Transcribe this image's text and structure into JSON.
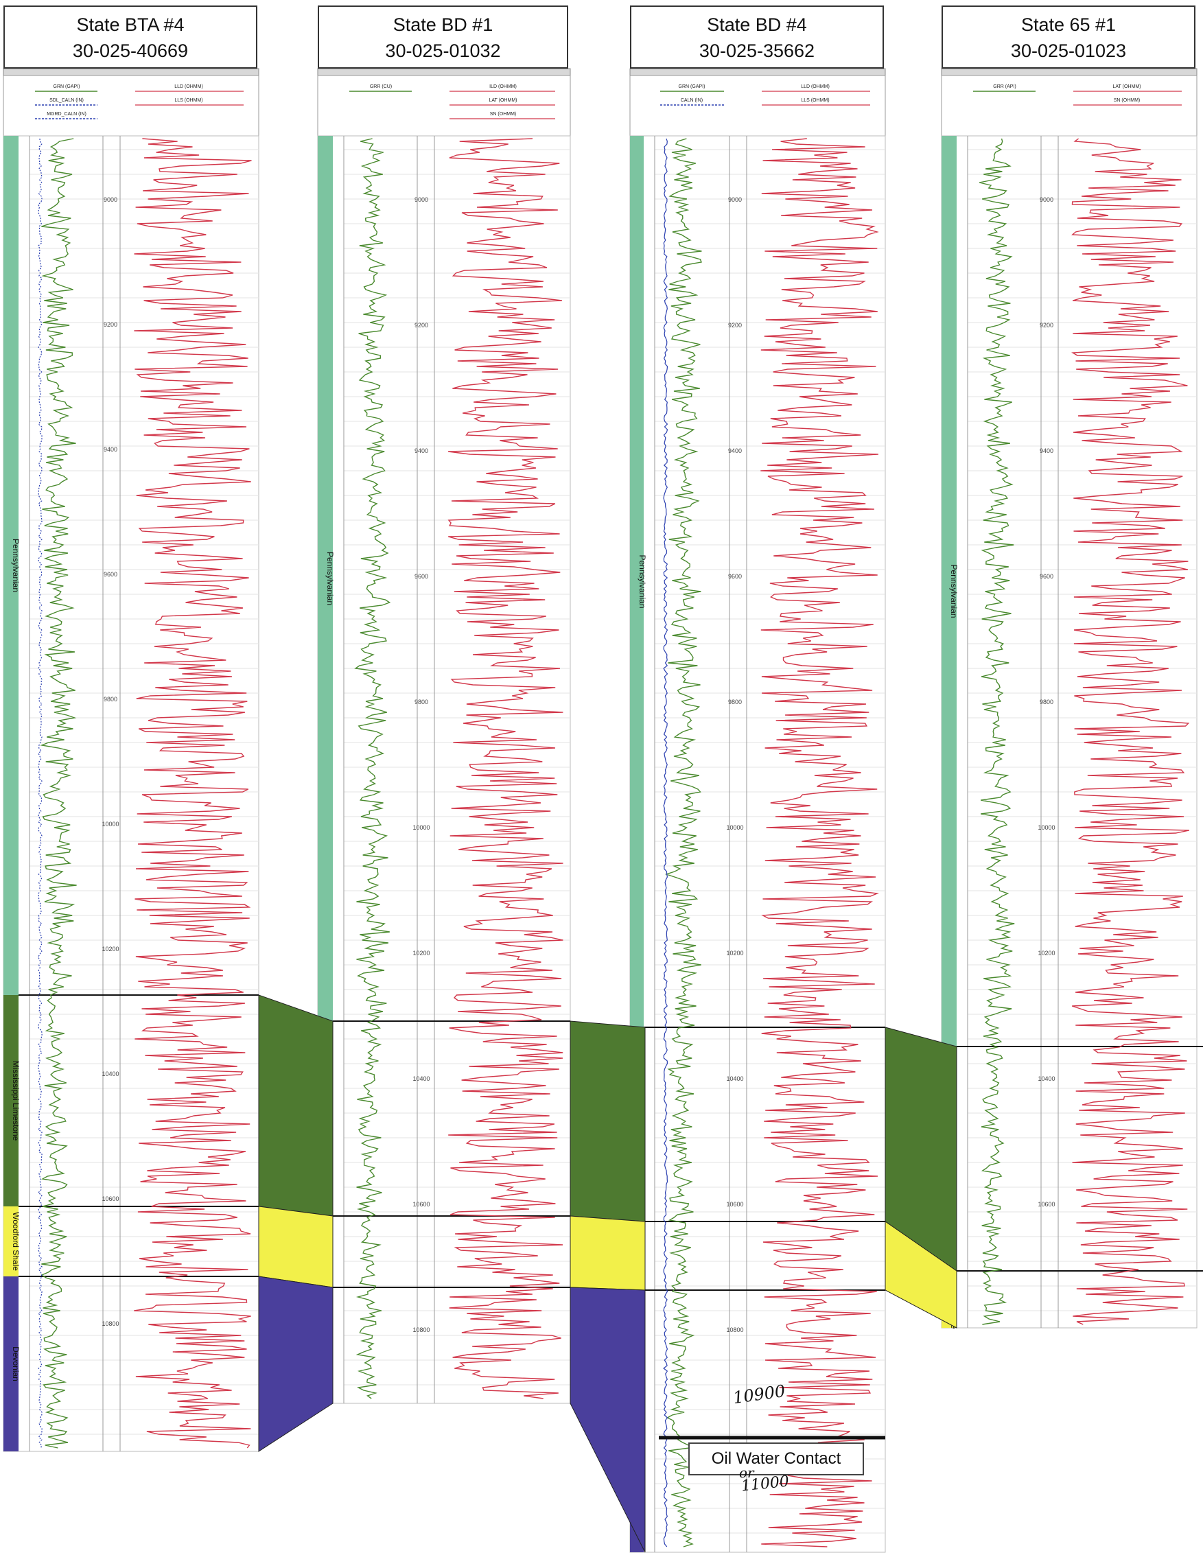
{
  "wells": [
    {
      "name": "State BTA #4",
      "api": "30-025-40669",
      "tracks": {
        "t1": [
          "GRN (GAPI)",
          "SDL_CALN (IN)",
          "MGRD_CALN (IN)"
        ],
        "t3": [
          "LLD (OHMM)",
          "LLS (OHMM)"
        ]
      },
      "depth_ticks": [
        "9000",
        "9200",
        "9400",
        "9600",
        "9800",
        "10000",
        "10200",
        "10400",
        "10600",
        "10800"
      ],
      "tops": [
        {
          "name": "Pennsylvanian",
          "from": 8850,
          "to": 10440
        },
        {
          "name": "Mississippi Limestone",
          "from": 10440,
          "to": 10640
        },
        {
          "name": "Woodford Shale",
          "from": 10640,
          "to": 10700
        },
        {
          "name": "Devonian",
          "from": 10700,
          "to": 10860
        }
      ]
    },
    {
      "name": "State BD #1",
      "api": "30-025-01032",
      "tracks": {
        "t1": [
          "GRR (CU)"
        ],
        "t3": [
          "ILD (OHMM)",
          "LAT (OHMM)",
          "SN (OHMM)"
        ]
      },
      "depth_ticks": [
        "9000",
        "9200",
        "9400",
        "9600",
        "9800",
        "10000",
        "10200",
        "10400",
        "10600",
        "10800"
      ],
      "tops": [
        {
          "name": "Pennsylvanian",
          "from": 8850,
          "to": 10440
        },
        {
          "name": "Mississippi Limestone",
          "from": 10440,
          "to": 10640
        },
        {
          "name": "Woodford Shale",
          "from": 10640,
          "to": 10700
        },
        {
          "name": "Devonian",
          "from": 10700,
          "to": 10860
        }
      ]
    },
    {
      "name": "State BD #4",
      "api": "30-025-35662",
      "tracks": {
        "t1": [
          "GRN (GAPI)",
          "CALN (IN)"
        ],
        "t3": [
          "LLD (OHMM)",
          "LLS (OHMM)"
        ]
      },
      "depth_ticks": [
        "9000",
        "9200",
        "9400",
        "9600",
        "9800",
        "10000",
        "10200",
        "10400",
        "10600",
        "10800"
      ],
      "tops": [
        {
          "name": "Pennsylvanian",
          "from": 8850,
          "to": 10440
        },
        {
          "name": "Mississippi Limestone",
          "from": 10440,
          "to": 10640
        },
        {
          "name": "Woodford Shale",
          "from": 10640,
          "to": 10700
        },
        {
          "name": "Devonian",
          "from": 10700,
          "to": 10860
        }
      ]
    },
    {
      "name": "State 65 #1",
      "api": "30-025-01023",
      "tracks": {
        "t1": [
          "GRR (API)"
        ],
        "t3": [
          "LAT (OHMM)",
          "SN (OHMM)"
        ]
      },
      "depth_ticks": [
        "9000",
        "9200",
        "9400",
        "9600",
        "9800",
        "10000",
        "10200",
        "10400",
        "10600"
      ],
      "tops": [
        {
          "name": "Pennsylvanian",
          "from": 8850,
          "to": 10440
        },
        {
          "name": "Mississippi Limestone",
          "from": 10440,
          "to": 10640
        },
        {
          "name": "Woodford Shale",
          "from": 10640,
          "to": 10700
        }
      ]
    }
  ],
  "correlations": [
    "Mississippi Limestone",
    "Woodford Shale",
    "Devonian"
  ],
  "annotations": {
    "oil_water_contact": "Oil Water Contact",
    "note_10900": "10900",
    "note_or": "or",
    "note_11000": "11000"
  },
  "colors": {
    "pennsylvanian": "#7cc4a0",
    "mississippi": "#4e7a30",
    "woodford": "#f2f04a",
    "devonian": "#4a3f9c",
    "gr": "#4a8a2e",
    "res": "#d2374a",
    "cal": "#2a3fb0"
  }
}
